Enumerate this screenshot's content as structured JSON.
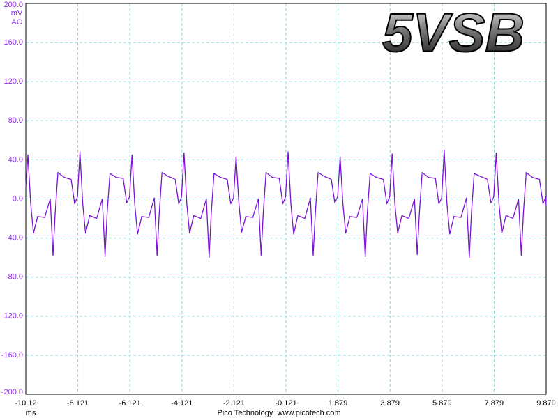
{
  "chart_data": {
    "type": "line",
    "title": "5VSB",
    "x_unit": "ms",
    "y_unit": "mV",
    "coupling": "AC",
    "footer": "Pico Technology  www.picotech.com",
    "grid": true,
    "xlim": [
      -10.121,
      9.879
    ],
    "ylim": [
      -200,
      200
    ],
    "xticks": [
      {
        "value": -10.121,
        "label": "-10.12"
      },
      -8.121,
      -6.121,
      -4.121,
      -2.121,
      -0.121,
      1.879,
      3.879,
      5.879,
      7.879,
      9.879
    ],
    "yticks": [
      {
        "value": 200,
        "label": "200.0"
      },
      {
        "value": 160,
        "label": "160.0"
      },
      {
        "value": 120,
        "label": "120.0"
      },
      {
        "value": 80,
        "label": "80.0"
      },
      {
        "value": 40,
        "label": "40.0"
      },
      {
        "value": 0,
        "label": "0.0"
      },
      {
        "value": -40,
        "label": "-40.0"
      },
      {
        "value": -80,
        "label": "-80.0"
      },
      {
        "value": -120,
        "label": "-120.0"
      },
      {
        "value": -160,
        "label": "-160.0"
      },
      {
        "value": -200,
        "label": "-200.0"
      }
    ],
    "x": [
      -10.121,
      -10.04,
      -9.933,
      -9.826,
      -9.665,
      -9.397,
      -9.182,
      -9.075,
      -8.994,
      -8.887,
      -8.646,
      -8.378,
      -8.244,
      -8.136,
      -8.04,
      -7.933,
      -7.826,
      -7.665,
      -7.397,
      -7.182,
      -7.075,
      -6.994,
      -6.887,
      -6.646,
      -6.378,
      -6.244,
      -6.136,
      -6.04,
      -5.933,
      -5.826,
      -5.665,
      -5.397,
      -5.182,
      -5.075,
      -4.994,
      -4.887,
      -4.646,
      -4.378,
      -4.244,
      -4.136,
      -4.04,
      -3.933,
      -3.826,
      -3.665,
      -3.397,
      -3.182,
      -3.075,
      -2.994,
      -2.887,
      -2.646,
      -2.378,
      -2.244,
      -2.136,
      -2.04,
      -1.933,
      -1.826,
      -1.665,
      -1.397,
      -1.182,
      -1.075,
      -0.994,
      -0.887,
      -0.646,
      -0.378,
      -0.244,
      -0.136,
      -0.04,
      0.067,
      0.174,
      0.335,
      0.603,
      0.818,
      0.925,
      1.006,
      1.113,
      1.354,
      1.622,
      1.756,
      1.864,
      1.96,
      2.067,
      2.174,
      2.335,
      2.603,
      2.818,
      2.925,
      3.006,
      3.113,
      3.354,
      3.622,
      3.756,
      3.864,
      3.96,
      4.067,
      4.174,
      4.335,
      4.603,
      4.818,
      4.925,
      5.006,
      5.113,
      5.354,
      5.622,
      5.756,
      5.864,
      5.96,
      6.067,
      6.174,
      6.335,
      6.603,
      6.818,
      6.925,
      7.006,
      7.113,
      7.354,
      7.622,
      7.756,
      7.864,
      7.96,
      8.067,
      8.174,
      8.335,
      8.603,
      8.818,
      8.925,
      9.006,
      9.113,
      9.354,
      9.622,
      9.756,
      9.864,
      9.879
    ],
    "series": [
      {
        "color": "#7a12d4",
        "values": [
          12,
          45,
          -5,
          -35,
          -18,
          -19,
          0,
          -58,
          -15,
          27,
          22,
          20,
          -5,
          2,
          48,
          -5,
          -35,
          -17,
          -20,
          0,
          -59,
          -14,
          26,
          22,
          21,
          -4,
          2,
          45,
          -6,
          -36,
          -18,
          -19,
          1,
          -58,
          -15,
          27,
          23,
          20,
          -5,
          2,
          47,
          -5,
          -35,
          -17,
          -20,
          0,
          -60,
          -15,
          26,
          22,
          20,
          -5,
          1,
          43,
          -4,
          -34,
          -18,
          -19,
          0,
          -58,
          -14,
          27,
          22,
          21,
          -5,
          2,
          48,
          -5,
          -36,
          -17,
          -20,
          1,
          -58,
          -15,
          27,
          23,
          20,
          -4,
          2,
          43,
          -5,
          -35,
          -18,
          -19,
          0,
          -59,
          -14,
          26,
          22,
          20,
          -5,
          2,
          46,
          -6,
          -35,
          -17,
          -20,
          0,
          -57,
          -15,
          27,
          22,
          21,
          -5,
          1,
          50,
          -5,
          -36,
          -18,
          -19,
          1,
          -60,
          -15,
          26,
          23,
          20,
          -4,
          2,
          47,
          -5,
          -35,
          -17,
          -20,
          0,
          -58,
          -14,
          27,
          22,
          20,
          -5,
          2,
          -8
        ]
      }
    ]
  }
}
